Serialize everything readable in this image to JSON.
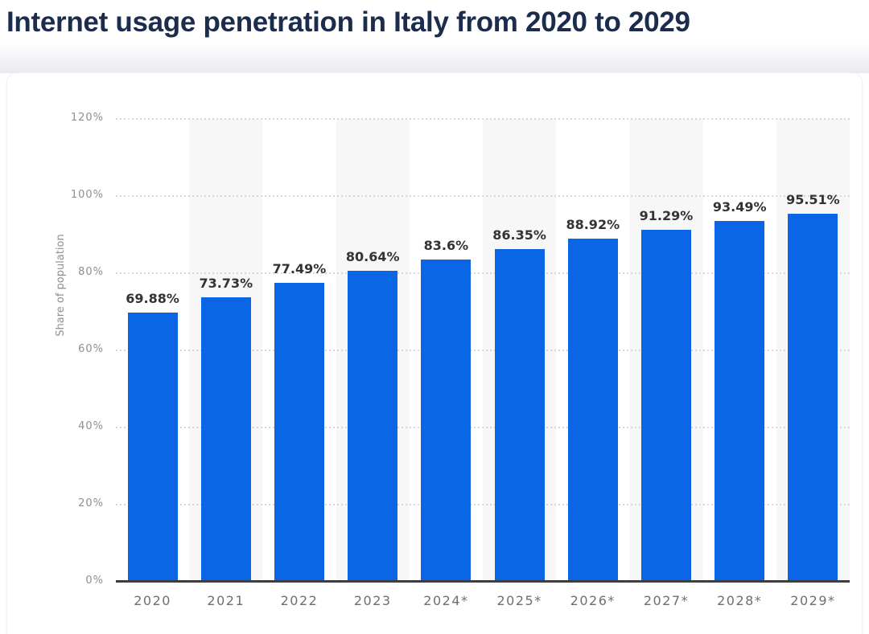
{
  "header": {
    "title": "Internet usage penetration in Italy from 2020 to 2029"
  },
  "chart_data": {
    "type": "bar",
    "title": "Internet usage penetration in Italy from 2020 to 2029",
    "categories": [
      "2020",
      "2021",
      "2022",
      "2023",
      "2024*",
      "2025*",
      "2026*",
      "2027*",
      "2028*",
      "2029*"
    ],
    "values": [
      69.88,
      73.73,
      77.49,
      80.64,
      83.6,
      86.35,
      88.92,
      91.29,
      93.49,
      95.51
    ],
    "value_labels": [
      "69.88%",
      "73.73%",
      "77.49%",
      "80.64%",
      "83.6%",
      "86.35%",
      "88.92%",
      "91.29%",
      "93.49%",
      "95.51%"
    ],
    "xlabel": "",
    "ylabel": "Share of population",
    "ylim": [
      0,
      120
    ],
    "yticks": [
      0,
      20,
      40,
      60,
      80,
      100,
      120
    ],
    "ytick_labels": [
      "0%",
      "20%",
      "40%",
      "60%",
      "80%",
      "100%",
      "120%"
    ],
    "grid": "horizontal-dotted",
    "legend": "none",
    "colors": {
      "bar": "#0a66e4",
      "stripe": "#f7f7f8",
      "grid_dot": "#d7d7da",
      "axis_line": "#3e3e42",
      "title_text": "#1b2c4d",
      "value_label_text": "#333333",
      "tick_label_text": "#8e8e96",
      "x_label_text": "#6e6e73"
    },
    "stripe_pattern": "alternating columns, stripes behind odd-index categories (2021, 2023, 2025*, 2027*, 2029*)"
  }
}
